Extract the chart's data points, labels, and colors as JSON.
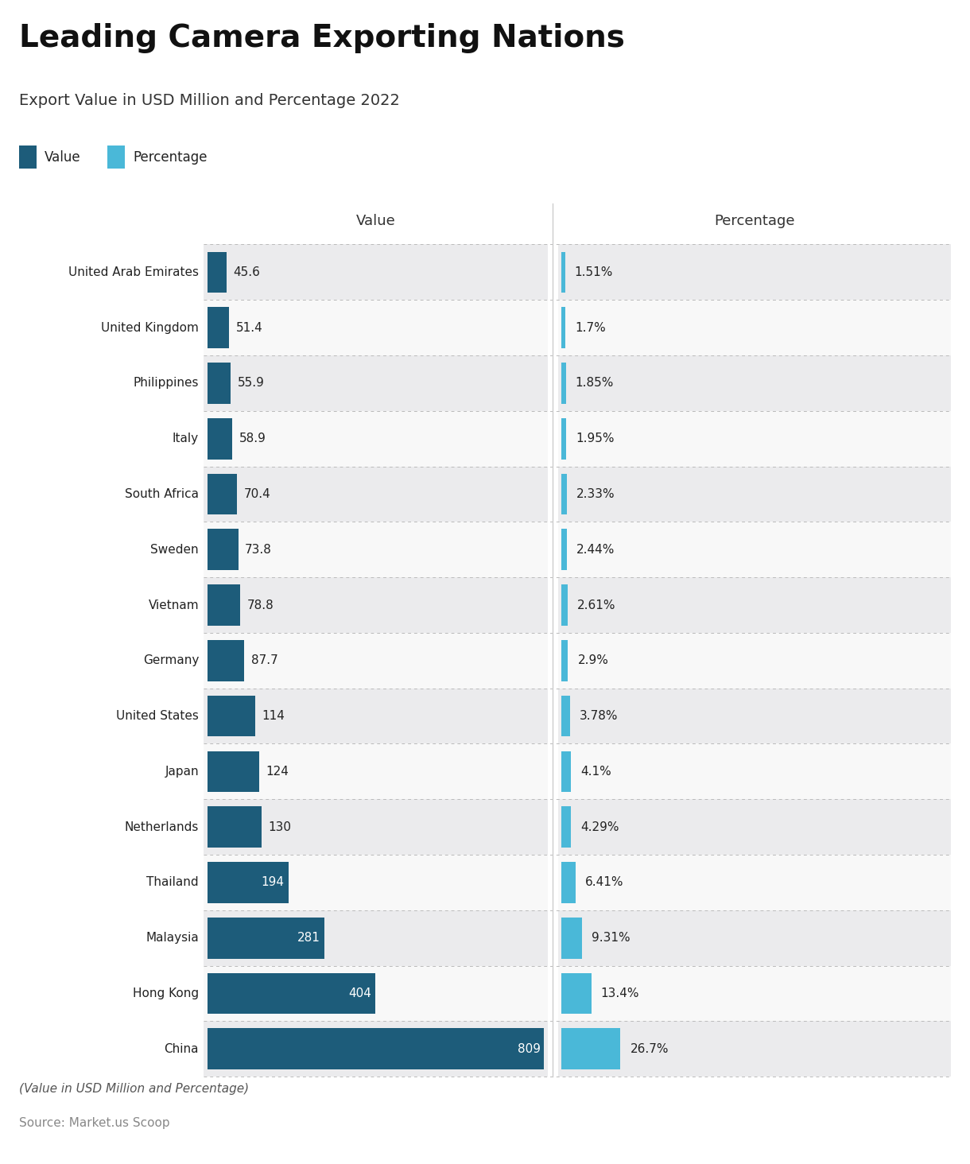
{
  "title": "Leading Camera Exporting Nations",
  "subtitle": "Export Value in USD Million and Percentage 2022",
  "footnote": "(Value in USD Million and Percentage)",
  "source": "Source: Market.us Scoop",
  "legend": [
    "Value",
    "Percentage"
  ],
  "legend_colors": [
    "#1d5c7a",
    "#4ab8d8"
  ],
  "col_header_value": "Value",
  "col_header_pct": "Percentage",
  "countries": [
    "United Arab Emirates",
    "United Kingdom",
    "Philippines",
    "Italy",
    "South Africa",
    "Sweden",
    "Vietnam",
    "Germany",
    "United States",
    "Japan",
    "Netherlands",
    "Thailand",
    "Malaysia",
    "Hong Kong",
    "China"
  ],
  "values": [
    45.6,
    51.4,
    55.9,
    58.9,
    70.4,
    73.8,
    78.8,
    87.7,
    114,
    124,
    130,
    194,
    281,
    404,
    809
  ],
  "value_labels": [
    "45.6",
    "51.4",
    "55.9",
    "58.9",
    "70.4",
    "73.8",
    "78.8",
    "87.7",
    "114",
    "124",
    "130",
    "194",
    "281",
    "404",
    "809"
  ],
  "percentages": [
    "1.51%",
    "1.7%",
    "1.85%",
    "1.95%",
    "2.33%",
    "2.44%",
    "2.61%",
    "2.9%",
    "3.78%",
    "4.1%",
    "4.29%",
    "6.41%",
    "9.31%",
    "13.4%",
    "26.7%"
  ],
  "pct_values": [
    1.51,
    1.7,
    1.85,
    1.95,
    2.33,
    2.44,
    2.61,
    2.9,
    3.78,
    4.1,
    4.29,
    6.41,
    9.31,
    13.4,
    26.7
  ],
  "value_color": "#1d5c7a",
  "pct_color": "#4ab8d8",
  "bar_max_value": 809,
  "bar_max_pct": 26.7,
  "value_label_threshold": 150,
  "bg_row_even": "#ebebed",
  "bg_row_odd": "#f8f8f8",
  "text_color_inside": "#ffffff",
  "text_color_outside": "#222222",
  "title_fontsize": 28,
  "subtitle_fontsize": 14,
  "label_fontsize": 11,
  "header_fontsize": 13
}
